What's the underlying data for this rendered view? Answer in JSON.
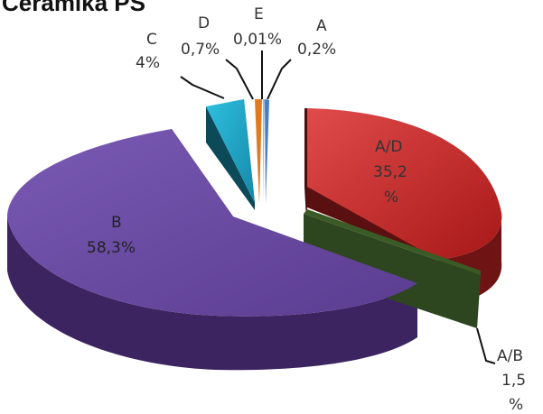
{
  "chart_data": {
    "type": "pie",
    "title": "Ceramika PS",
    "three_d": true,
    "exploded": true,
    "slices": [
      {
        "name": "A/D",
        "value": 35.2,
        "label_lines": [
          "A/D",
          "35,2",
          "%"
        ],
        "color": "#c42a2a"
      },
      {
        "name": "A/B",
        "value": 1.5,
        "label_lines": [
          "A/B",
          "1,5",
          "%"
        ],
        "color": "#3a5a26"
      },
      {
        "name": "B",
        "value": 58.3,
        "label_lines": [
          "B",
          "58,3%"
        ],
        "color": "#6a4aa0"
      },
      {
        "name": "C",
        "value": 4,
        "label_lines": [
          "C",
          "4%"
        ],
        "color": "#1fa6c6"
      },
      {
        "name": "D",
        "value": 0.7,
        "label_lines": [
          "D",
          "0,7%"
        ],
        "color": "#e07a20"
      },
      {
        "name": "E",
        "value": 0.01,
        "label_lines": [
          "E",
          "0,01%"
        ],
        "color": "#9ab8d8"
      },
      {
        "name": "A",
        "value": 0.2,
        "label_lines": [
          "A",
          "0,2%"
        ],
        "color": "#4a7ec4"
      }
    ]
  }
}
